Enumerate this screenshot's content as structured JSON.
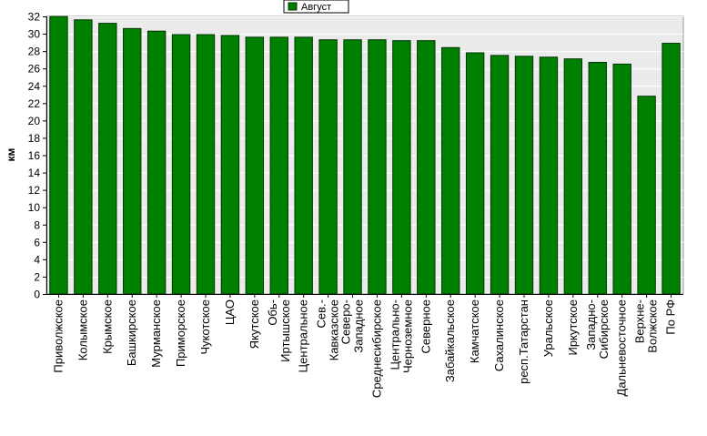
{
  "chart_data": {
    "type": "bar",
    "title": "",
    "xlabel": "",
    "ylabel": "км",
    "ylim": [
      0,
      32
    ],
    "y_ticks": [
      0,
      2,
      4,
      6,
      8,
      10,
      12,
      14,
      16,
      18,
      20,
      22,
      24,
      26,
      28,
      30,
      32
    ],
    "grid": true,
    "legend": "top-center",
    "categories": [
      [
        "Приволжское"
      ],
      [
        "Колымское"
      ],
      [
        "Крымское"
      ],
      [
        "Башкирское"
      ],
      [
        "Мурманское"
      ],
      [
        "Приморское"
      ],
      [
        "Чукотское"
      ],
      [
        "ЦАО"
      ],
      [
        "Якутское"
      ],
      [
        "Обь-",
        "Иртышское"
      ],
      [
        "Центральное"
      ],
      [
        "Сев.-",
        "Кавказское"
      ],
      [
        "Северо-",
        "Западное"
      ],
      [
        "Среднесибирское"
      ],
      [
        "Центрально-",
        "Черноземное"
      ],
      [
        "Северное"
      ],
      [
        "Забайкальское"
      ],
      [
        "Камчатское"
      ],
      [
        "Сахалинское"
      ],
      [
        "респ.Татарстан"
      ],
      [
        "Уральское"
      ],
      [
        "Иркутское"
      ],
      [
        "Западно-",
        "Сибирское"
      ],
      [
        "Дальневосточное"
      ],
      [
        "Верхне-",
        "Волжское"
      ],
      [
        "По РФ"
      ]
    ],
    "series": [
      {
        "name": "Август",
        "color": "#008000",
        "values": [
          32.0,
          31.6,
          31.2,
          30.6,
          30.3,
          29.9,
          29.9,
          29.8,
          29.6,
          29.6,
          29.6,
          29.3,
          29.3,
          29.3,
          29.2,
          29.2,
          28.4,
          27.8,
          27.5,
          27.4,
          27.3,
          27.1,
          26.7,
          26.5,
          22.8,
          28.9
        ]
      }
    ]
  },
  "colors": {
    "plot_background": "#ebebeb",
    "grid": "#ffffff",
    "bar_stroke": "#003300",
    "axis": "#000000"
  }
}
